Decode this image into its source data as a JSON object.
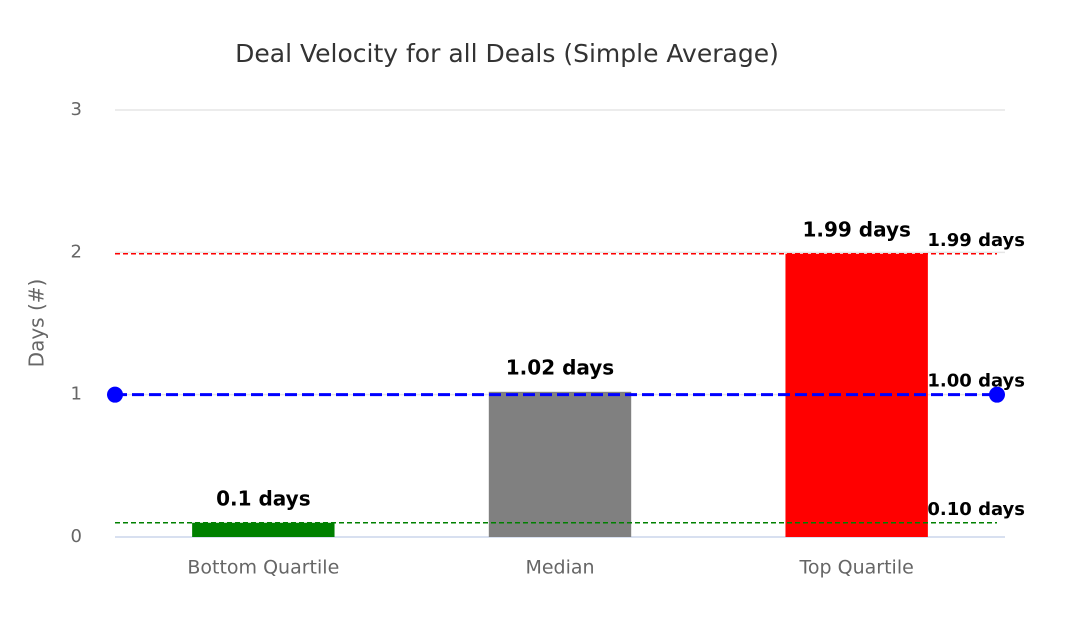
{
  "chart_data": {
    "type": "bar",
    "title": "Deal Velocity for all Deals (Simple Average)",
    "y_label": "Days (#)",
    "categories": [
      "Bottom Quartile",
      "Median",
      "Top Quartile"
    ],
    "values": [
      0.1,
      1.02,
      1.99
    ],
    "value_labels": [
      "0.1 days",
      "1.02 days",
      "1.99 days"
    ],
    "colors": [
      "#008000",
      "#808080",
      "#ff0000"
    ],
    "ylim": [
      0,
      3
    ],
    "yticks": [
      0,
      1,
      2,
      3
    ],
    "grid": true,
    "reference_lines": [
      {
        "value": 1.99,
        "label": "1.99 days",
        "color": "#ff0000"
      },
      {
        "value": 1.0,
        "label": "1.00 days",
        "color": "#0000ff"
      },
      {
        "value": 0.1,
        "label": "0.10 days",
        "color": "#008000"
      }
    ]
  }
}
